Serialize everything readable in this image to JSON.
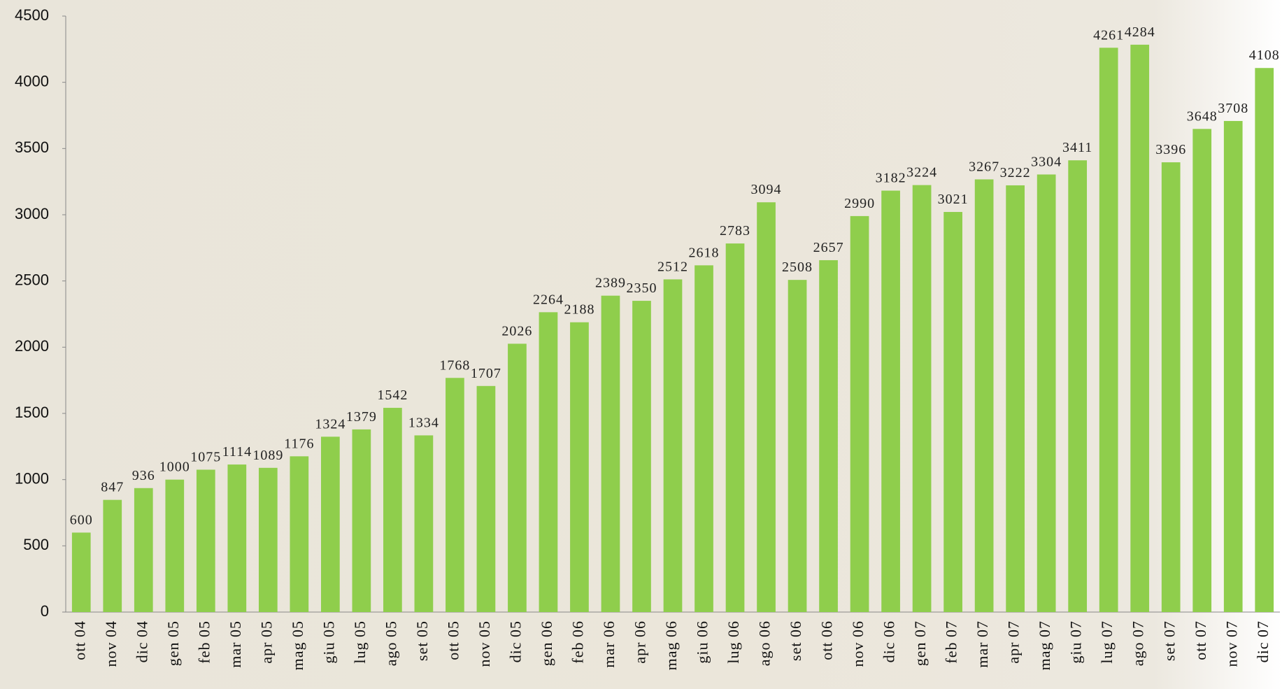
{
  "chart_data": {
    "type": "bar",
    "categories": [
      "ott 04",
      "nov 04",
      "dic 04",
      "gen 05",
      "feb 05",
      "mar 05",
      "apr 05",
      "mag 05",
      "giu 05",
      "lug 05",
      "ago 05",
      "set 05",
      "ott 05",
      "nov 05",
      "dic 05",
      "gen 06",
      "feb 06",
      "mar 06",
      "apr 06",
      "mag 06",
      "giu 06",
      "lug 06",
      "ago 06",
      "set 06",
      "ott 06",
      "nov 06",
      "dic 06",
      "gen 07",
      "feb 07",
      "mar 07",
      "apr 07",
      "mag 07",
      "giu 07",
      "lug 07",
      "ago 07",
      "set 07",
      "ott 07",
      "nov 07",
      "dic 07"
    ],
    "values": [
      600,
      847,
      936,
      1000,
      1075,
      1114,
      1089,
      1176,
      1324,
      1379,
      1542,
      1334,
      1768,
      1707,
      2026,
      2264,
      2188,
      2389,
      2350,
      2512,
      2618,
      2783,
      3094,
      2508,
      2657,
      2990,
      3182,
      3224,
      3021,
      3267,
      3222,
      3304,
      3411,
      4261,
      4284,
      3396,
      3648,
      3708,
      4108
    ],
    "color": "#8fce4c",
    "ylim": [
      0,
      4500
    ],
    "yticks": [
      0,
      500,
      1000,
      1500,
      2000,
      2500,
      3000,
      3500,
      4000,
      4500
    ]
  }
}
